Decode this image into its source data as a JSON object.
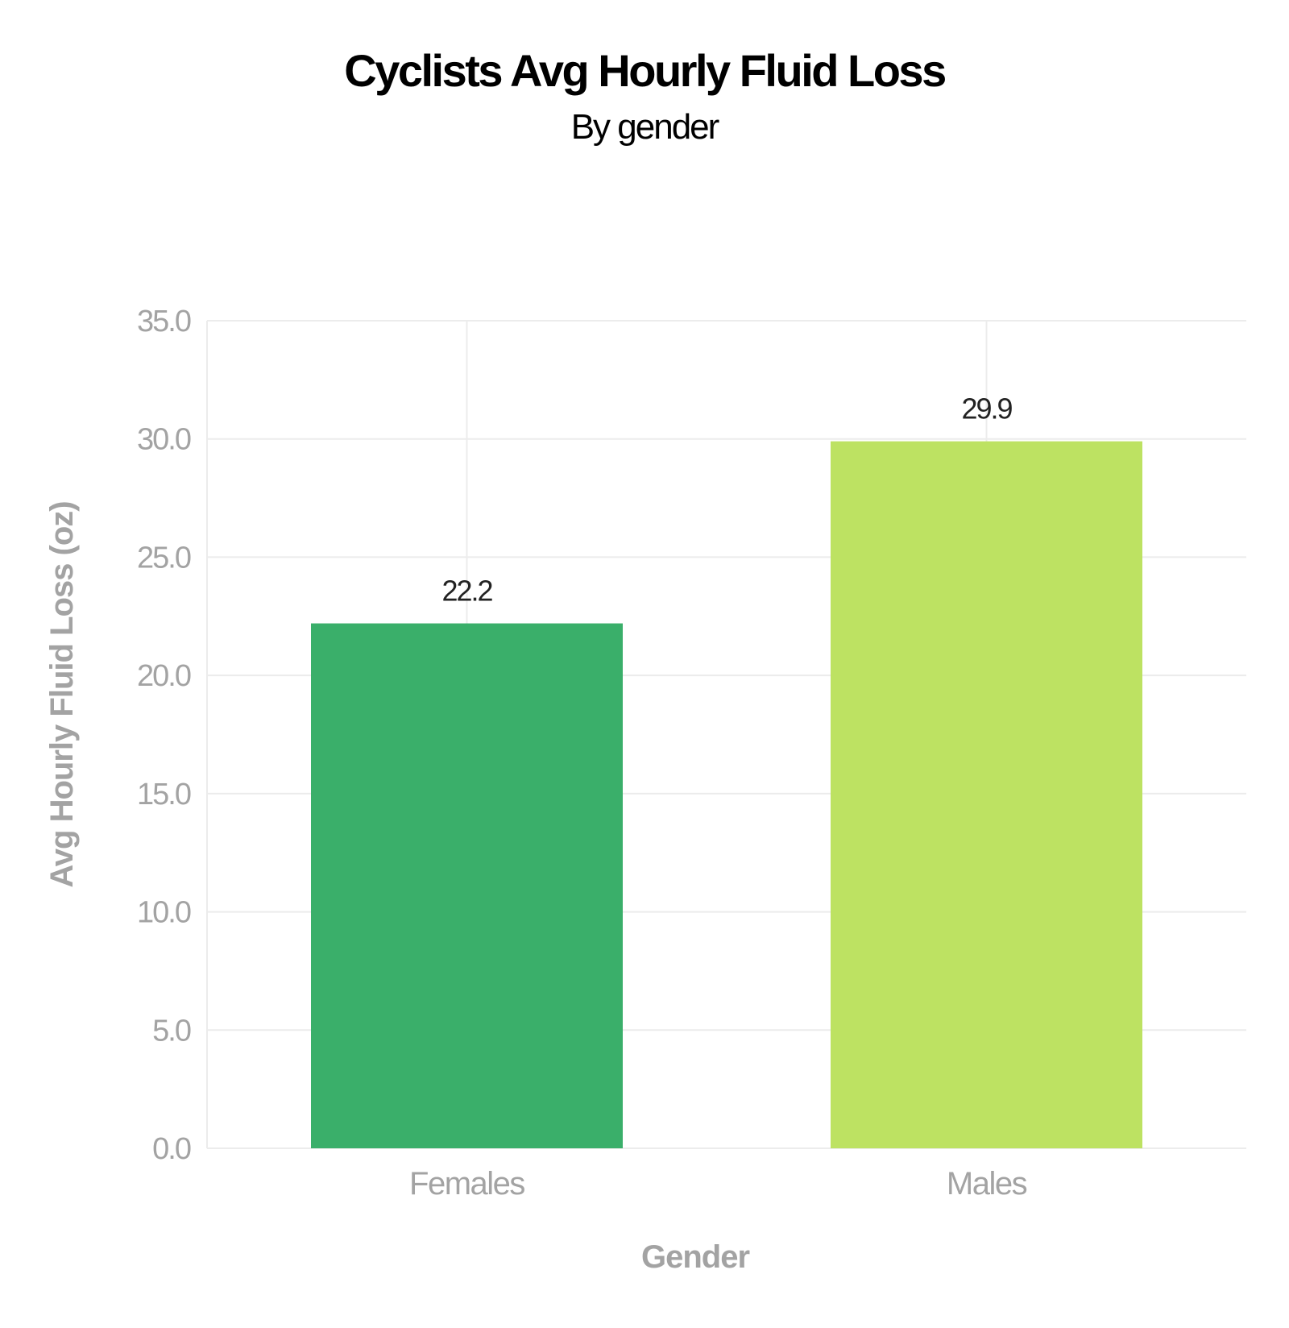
{
  "chart_data": {
    "type": "bar",
    "title": "Cyclists Avg Hourly Fluid Loss",
    "subtitle": "By gender",
    "xlabel": "Gender",
    "ylabel": "Avg Hourly Fluid Loss (oz)",
    "categories": [
      "Females",
      "Males"
    ],
    "values": [
      22.2,
      29.9
    ],
    "data_labels": [
      "22.2",
      "29.9"
    ],
    "bar_colors": [
      "#3aaf6a",
      "#bde262"
    ],
    "ylim": [
      0,
      35
    ],
    "yticks": [
      0,
      5,
      10,
      15,
      20,
      25,
      30,
      35
    ],
    "ytick_labels": [
      "0.0",
      "5.0",
      "10.0",
      "15.0",
      "20.0",
      "25.0",
      "30.0",
      "35.0"
    ],
    "grid": true,
    "legend": "none"
  }
}
